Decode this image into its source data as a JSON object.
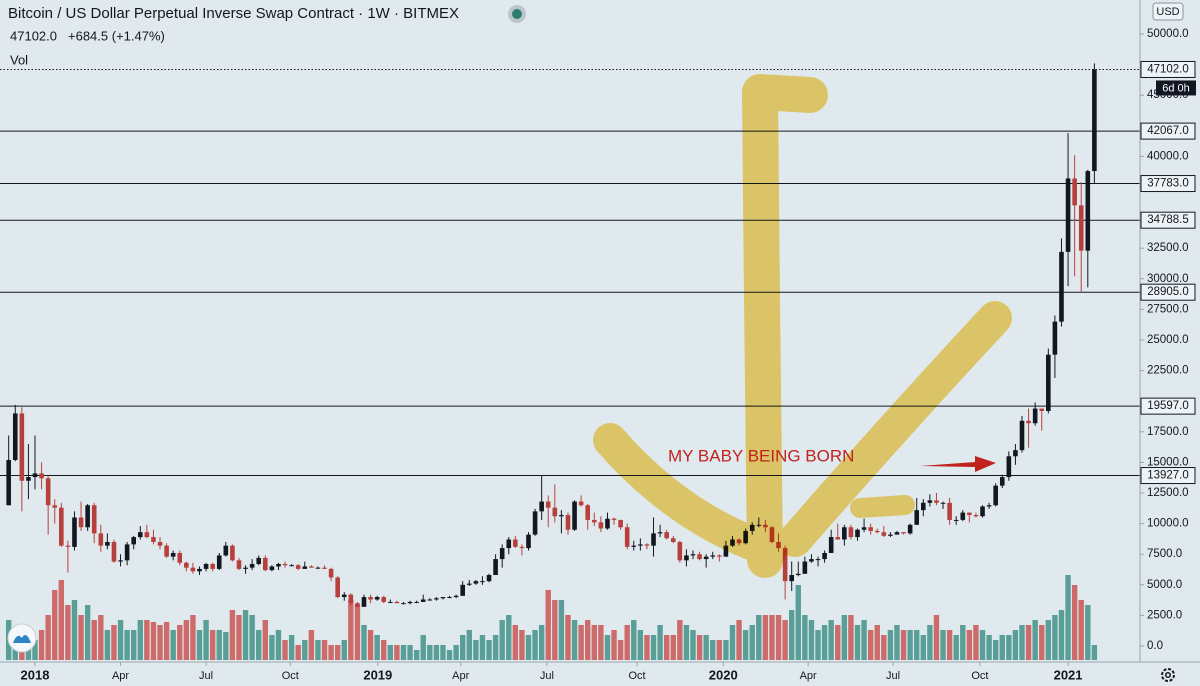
{
  "chart_data": {
    "type": "candlestick",
    "title": "Bitcoin / US Dollar Perpetual Inverse Swap Contract · 1W · BITMEX",
    "price": "47102.0",
    "change": "+684.5 (+1.47%)",
    "volume_label": "Vol",
    "currency": "USD",
    "annotation": "MY BABY BEING BORN",
    "countdown": "6d 0h",
    "ylim": [
      0,
      50000
    ],
    "vol_ylim": [
      0,
      100
    ],
    "yticks": [
      {
        "value": 50000,
        "label": "50000.0"
      },
      {
        "value": 45000,
        "label": "45000.0"
      },
      {
        "value": 40000,
        "label": "40000.0"
      },
      {
        "value": 32500,
        "label": "32500.0"
      },
      {
        "value": 30000,
        "label": "30000.0"
      },
      {
        "value": 27500,
        "label": "27500.0"
      },
      {
        "value": 25000,
        "label": "25000.0"
      },
      {
        "value": 22500,
        "label": "22500.0"
      },
      {
        "value": 17500,
        "label": "17500.0"
      },
      {
        "value": 15000,
        "label": "15000.0"
      },
      {
        "value": 12500,
        "label": "12500.0"
      },
      {
        "value": 10000,
        "label": "10000.0"
      },
      {
        "value": 7500,
        "label": "7500.0"
      },
      {
        "value": 5000,
        "label": "5000.0"
      },
      {
        "value": 2500,
        "label": "2500.0"
      },
      {
        "value": 0,
        "label": "0.0"
      }
    ],
    "xticks": [
      {
        "value": 4,
        "label": "2018"
      },
      {
        "value": 17,
        "label": "Apr"
      },
      {
        "value": 30,
        "label": "Jul"
      },
      {
        "value": 42.8,
        "label": "Oct"
      },
      {
        "value": 56.1,
        "label": "2019"
      },
      {
        "value": 68.7,
        "label": "Apr"
      },
      {
        "value": 81.8,
        "label": "Jul"
      },
      {
        "value": 95.5,
        "label": "Oct"
      },
      {
        "value": 108.6,
        "label": "2020"
      },
      {
        "value": 121.5,
        "label": "Apr"
      },
      {
        "value": 134.4,
        "label": "Jul"
      },
      {
        "value": 147.6,
        "label": "Oct"
      },
      {
        "value": 161,
        "label": "2021"
      }
    ],
    "levels": [
      {
        "value": 47102,
        "label": "47102.0"
      },
      {
        "value": 42067,
        "label": "42067.0"
      },
      {
        "value": 37783,
        "label": "37783.0"
      },
      {
        "value": 34788.5,
        "label": "34788.5"
      },
      {
        "value": 28905,
        "label": "28905.0"
      },
      {
        "value": 19597,
        "label": "19597.0"
      },
      {
        "value": 13927,
        "label": "13927.0"
      }
    ],
    "up_color": "#131722",
    "down_color": "#b8403c",
    "vol_up_color": "#5a9e98",
    "vol_down_color": "#cd6b6b",
    "ohlc": [
      [
        11500,
        17200,
        11500,
        15200
      ],
      [
        15200,
        19700,
        15100,
        19000
      ],
      [
        19000,
        19500,
        11000,
        13500
      ],
      [
        13500,
        16500,
        12000,
        13800
      ],
      [
        13800,
        17200,
        12800,
        14100
      ],
      [
        14100,
        15000,
        12800,
        13700
      ],
      [
        13700,
        14000,
        9100,
        11500
      ],
      [
        11500,
        12000,
        10000,
        11300
      ],
      [
        11300,
        11700,
        8100,
        8200
      ],
      [
        8200,
        8600,
        6000,
        8100
      ],
      [
        8100,
        11000,
        7800,
        10500
      ],
      [
        10500,
        11800,
        9400,
        9700
      ],
      [
        9700,
        11600,
        9400,
        11500
      ],
      [
        11500,
        11700,
        8400,
        9200
      ],
      [
        9200,
        9900,
        7700,
        8200
      ],
      [
        8200,
        9200,
        7900,
        8500
      ],
      [
        8500,
        8700,
        6800,
        6900
      ],
      [
        6900,
        7500,
        6500,
        7000
      ],
      [
        7000,
        8500,
        6600,
        8300
      ],
      [
        8300,
        9000,
        7900,
        8900
      ],
      [
        8900,
        9800,
        8700,
        9300
      ],
      [
        9300,
        9900,
        8800,
        8900
      ],
      [
        8900,
        9500,
        8300,
        8500
      ],
      [
        8500,
        8900,
        7900,
        8200
      ],
      [
        8200,
        8400,
        7200,
        7300
      ],
      [
        7300,
        7800,
        7000,
        7600
      ],
      [
        7600,
        7800,
        6600,
        6800
      ],
      [
        6800,
        6900,
        6100,
        6400
      ],
      [
        6400,
        6800,
        5900,
        6100
      ],
      [
        6100,
        6500,
        5800,
        6300
      ],
      [
        6300,
        6800,
        6100,
        6700
      ],
      [
        6700,
        6800,
        6100,
        6300
      ],
      [
        6300,
        7600,
        6200,
        7400
      ],
      [
        7400,
        8500,
        7300,
        8200
      ],
      [
        8200,
        8300,
        6900,
        7000
      ],
      [
        7000,
        7200,
        6200,
        6300
      ],
      [
        6300,
        6600,
        5900,
        6400
      ],
      [
        6400,
        7100,
        6200,
        6700
      ],
      [
        6700,
        7400,
        6600,
        7200
      ],
      [
        7200,
        7400,
        6100,
        6200
      ],
      [
        6200,
        6600,
        6100,
        6500
      ],
      [
        6500,
        6800,
        6200,
        6700
      ],
      [
        6700,
        6900,
        6400,
        6600
      ],
      [
        6600,
        6700,
        6500,
        6600
      ],
      [
        6600,
        6700,
        6200,
        6300
      ],
      [
        6300,
        6900,
        6300,
        6500
      ],
      [
        6500,
        6600,
        6400,
        6400
      ],
      [
        6400,
        6500,
        6300,
        6400
      ],
      [
        6400,
        6600,
        6300,
        6300
      ],
      [
        6300,
        6400,
        5300,
        5600
      ],
      [
        5600,
        5700,
        3900,
        4000
      ],
      [
        4000,
        4400,
        3700,
        4200
      ],
      [
        4200,
        4300,
        3300,
        3500
      ],
      [
        3500,
        3600,
        3200,
        3200
      ],
      [
        3200,
        4200,
        3200,
        4000
      ],
      [
        4000,
        4200,
        3500,
        3800
      ],
      [
        3800,
        4100,
        3700,
        4000
      ],
      [
        4000,
        4100,
        3500,
        3600
      ],
      [
        3600,
        3800,
        3500,
        3600
      ],
      [
        3600,
        3700,
        3500,
        3500
      ],
      [
        3500,
        3600,
        3400,
        3500
      ],
      [
        3500,
        3700,
        3400,
        3600
      ],
      [
        3600,
        3700,
        3500,
        3600
      ],
      [
        3600,
        4200,
        3600,
        3800
      ],
      [
        3800,
        3900,
        3700,
        3800
      ],
      [
        3800,
        4000,
        3700,
        3900
      ],
      [
        3900,
        4000,
        3800,
        4000
      ],
      [
        4000,
        4100,
        3900,
        4000
      ],
      [
        4000,
        4200,
        3900,
        4100
      ],
      [
        4100,
        5300,
        4100,
        5000
      ],
      [
        5000,
        5400,
        4900,
        5100
      ],
      [
        5100,
        5400,
        5000,
        5300
      ],
      [
        5300,
        5700,
        5000,
        5300
      ],
      [
        5300,
        5900,
        5200,
        5800
      ],
      [
        5800,
        7500,
        5800,
        7100
      ],
      [
        7100,
        8300,
        6400,
        8000
      ],
      [
        8000,
        8900,
        7500,
        8700
      ],
      [
        8700,
        9000,
        8000,
        8100
      ],
      [
        8100,
        8300,
        7400,
        8000
      ],
      [
        8000,
        9300,
        7800,
        9100
      ],
      [
        9100,
        11200,
        9000,
        11000
      ],
      [
        11000,
        13900,
        10300,
        11800
      ],
      [
        11800,
        12300,
        9700,
        11300
      ],
      [
        11300,
        13200,
        10100,
        10600
      ],
      [
        10600,
        11100,
        9200,
        10700
      ],
      [
        10700,
        10900,
        9100,
        9500
      ],
      [
        9500,
        11900,
        9400,
        11800
      ],
      [
        11800,
        12300,
        11400,
        11500
      ],
      [
        11500,
        11600,
        9500,
        10300
      ],
      [
        10300,
        10900,
        9800,
        10100
      ],
      [
        10100,
        10600,
        9300,
        9600
      ],
      [
        9600,
        10900,
        9500,
        10400
      ],
      [
        10400,
        10500,
        9900,
        10300
      ],
      [
        10300,
        10300,
        9500,
        9700
      ],
      [
        9700,
        10000,
        7900,
        8100
      ],
      [
        8100,
        8600,
        7800,
        8200
      ],
      [
        8200,
        8800,
        7800,
        8300
      ],
      [
        8300,
        8400,
        7900,
        8200
      ],
      [
        8200,
        10500,
        7300,
        9200
      ],
      [
        9200,
        9900,
        8900,
        9300
      ],
      [
        9300,
        9500,
        8700,
        8800
      ],
      [
        8800,
        9000,
        8400,
        8500
      ],
      [
        8500,
        8600,
        6800,
        7000
      ],
      [
        7000,
        7900,
        6500,
        7400
      ],
      [
        7400,
        7800,
        7100,
        7500
      ],
      [
        7500,
        7700,
        7000,
        7100
      ],
      [
        7100,
        7500,
        6400,
        7300
      ],
      [
        7300,
        7700,
        7100,
        7400
      ],
      [
        7400,
        7500,
        6900,
        7300
      ],
      [
        7300,
        8600,
        7300,
        8200
      ],
      [
        8200,
        9000,
        8100,
        8700
      ],
      [
        8700,
        8800,
        8200,
        8400
      ],
      [
        8400,
        9600,
        8300,
        9400
      ],
      [
        9400,
        10100,
        9100,
        9900
      ],
      [
        9900,
        10500,
        9700,
        9900
      ],
      [
        9900,
        10300,
        9300,
        9700
      ],
      [
        9700,
        9800,
        8400,
        8500
      ],
      [
        8500,
        9200,
        7700,
        8000
      ],
      [
        8000,
        8200,
        3800,
        5300
      ],
      [
        5300,
        6900,
        4500,
        5800
      ],
      [
        5800,
        6900,
        5700,
        5900
      ],
      [
        5900,
        7300,
        5900,
        6900
      ],
      [
        6900,
        7500,
        6800,
        7100
      ],
      [
        7100,
        7300,
        6500,
        7100
      ],
      [
        7100,
        7800,
        6800,
        7600
      ],
      [
        7600,
        9500,
        7600,
        8900
      ],
      [
        8900,
        10000,
        8700,
        8700
      ],
      [
        8700,
        9900,
        8200,
        9700
      ],
      [
        9700,
        9900,
        8700,
        8900
      ],
      [
        8900,
        9600,
        8600,
        9500
      ],
      [
        9500,
        10400,
        9300,
        9700
      ],
      [
        9700,
        10000,
        9100,
        9400
      ],
      [
        9400,
        9600,
        9200,
        9300
      ],
      [
        9300,
        9800,
        8900,
        9000
      ],
      [
        9000,
        9300,
        8900,
        9100
      ],
      [
        9100,
        9400,
        9100,
        9300
      ],
      [
        9300,
        9300,
        9100,
        9200
      ],
      [
        9200,
        10000,
        9100,
        9900
      ],
      [
        9900,
        12100,
        9900,
        11100
      ],
      [
        11100,
        12000,
        10600,
        11700
      ],
      [
        11700,
        12400,
        11400,
        11900
      ],
      [
        11900,
        12500,
        11500,
        11700
      ],
      [
        11700,
        11800,
        11200,
        11700
      ],
      [
        11700,
        12100,
        9900,
        10300
      ],
      [
        10300,
        10600,
        9900,
        10300
      ],
      [
        10300,
        11100,
        10200,
        10900
      ],
      [
        10900,
        10900,
        10100,
        10700
      ],
      [
        10700,
        10900,
        10500,
        10600
      ],
      [
        10600,
        11500,
        10500,
        11400
      ],
      [
        11400,
        11700,
        11200,
        11500
      ],
      [
        11500,
        13300,
        11400,
        13100
      ],
      [
        13100,
        14000,
        12900,
        13800
      ],
      [
        13800,
        15900,
        13500,
        15500
      ],
      [
        15500,
        16500,
        14800,
        16000
      ],
      [
        16000,
        18800,
        15800,
        18400
      ],
      [
        18400,
        19400,
        16200,
        18200
      ],
      [
        18200,
        19900,
        18000,
        19400
      ],
      [
        19400,
        19400,
        17600,
        19200
      ],
      [
        19200,
        24300,
        19000,
        23800
      ],
      [
        23800,
        27000,
        21900,
        26500
      ],
      [
        26500,
        33300,
        26100,
        32200
      ],
      [
        32200,
        41900,
        29400,
        38200
      ],
      [
        38200,
        40100,
        30200,
        36000
      ],
      [
        36000,
        37900,
        28900,
        32300
      ],
      [
        32300,
        38900,
        29300,
        38800
      ],
      [
        38800,
        47600,
        37800,
        47102
      ]
    ],
    "volume": [
      40,
      25,
      35,
      30,
      20,
      30,
      45,
      70,
      80,
      55,
      60,
      45,
      55,
      40,
      45,
      30,
      35,
      40,
      30,
      30,
      40,
      40,
      38,
      35,
      38,
      30,
      35,
      40,
      45,
      30,
      40,
      30,
      30,
      28,
      50,
      45,
      50,
      45,
      30,
      40,
      25,
      30,
      20,
      25,
      15,
      20,
      30,
      20,
      20,
      15,
      15,
      20,
      60,
      55,
      35,
      30,
      25,
      20,
      15,
      15,
      15,
      15,
      10,
      25,
      15,
      15,
      15,
      10,
      15,
      25,
      30,
      20,
      25,
      20,
      25,
      40,
      45,
      35,
      30,
      25,
      30,
      35,
      70,
      60,
      60,
      45,
      40,
      35,
      40,
      35,
      35,
      25,
      30,
      20,
      35,
      40,
      30,
      25,
      25,
      35,
      25,
      25,
      40,
      35,
      30,
      25,
      25,
      20,
      20,
      20,
      35,
      40,
      30,
      35,
      45,
      45,
      45,
      45,
      40,
      50,
      75,
      45,
      40,
      30,
      35,
      40,
      35,
      45,
      45,
      35,
      40,
      30,
      35,
      25,
      30,
      35,
      30,
      30,
      30,
      25,
      35,
      45,
      30,
      30,
      25,
      35,
      30,
      35,
      30,
      25,
      20,
      25,
      25,
      30,
      35,
      35,
      40,
      35,
      40,
      45,
      50,
      85,
      75,
      60,
      55,
      15
    ]
  }
}
